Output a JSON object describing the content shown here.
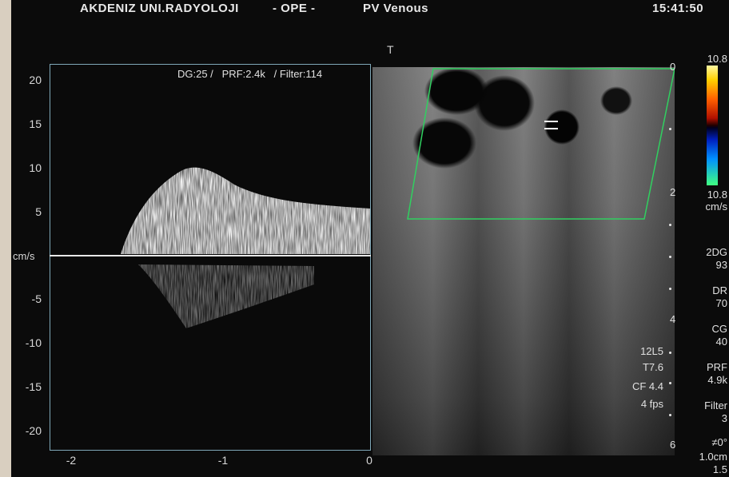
{
  "header": {
    "institution": "AKDENIZ UNI.RADYOLOJI",
    "separator": "- OPE -",
    "study": "PV Venous",
    "time": "15:41:50"
  },
  "doppler": {
    "settings": "DG:25 /   PRF:2.4k   / Filter:114",
    "unit": "cm/s",
    "y_ticks": [
      "20",
      "15",
      "10",
      "5",
      "-5",
      "-10",
      "-15",
      "-20"
    ],
    "x_ticks": [
      "-2",
      "-1",
      "0"
    ]
  },
  "bmode": {
    "marker": "T",
    "probe": "12L5",
    "t_value": "T7.6",
    "cf": "CF 4.4",
    "fps": "4 fps"
  },
  "colorbar": {
    "top": "10.8",
    "bottom": "10.8",
    "unit": "cm/s"
  },
  "depth": [
    "0",
    "2",
    "4",
    "6"
  ],
  "side_params": {
    "2dg_label": "2DG",
    "2dg_value": "93",
    "dr_label": "DR",
    "dr_value": "70",
    "cg_label": "CG",
    "cg_value": "40",
    "prf_label": "PRF",
    "prf_value": "4.9k",
    "filter_label": "Filter",
    "filter_value": "3",
    "angle": "≠0°",
    "scale": "1.0cm",
    "scale2": "1.5"
  }
}
